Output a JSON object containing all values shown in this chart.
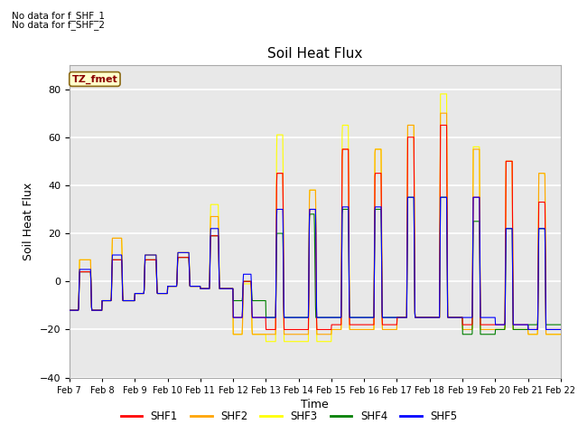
{
  "title": "Soil Heat Flux",
  "ylabel": "Soil Heat Flux",
  "xlabel": "Time",
  "no_data_text_1": "No data for f_SHF_1",
  "no_data_text_2": "No data for f_SHF_2",
  "tz_label": "TZ_fmet",
  "ylim": [
    -40,
    90
  ],
  "yticks": [
    -40,
    -20,
    0,
    20,
    40,
    60,
    80
  ],
  "background_color": "#e8e8e8",
  "grid_color": "white",
  "series": [
    "SHF1",
    "SHF2",
    "SHF3",
    "SHF4",
    "SHF5"
  ],
  "colors": [
    "red",
    "orange",
    "yellow",
    "green",
    "blue"
  ],
  "num_days": 15,
  "points_per_day": 96
}
